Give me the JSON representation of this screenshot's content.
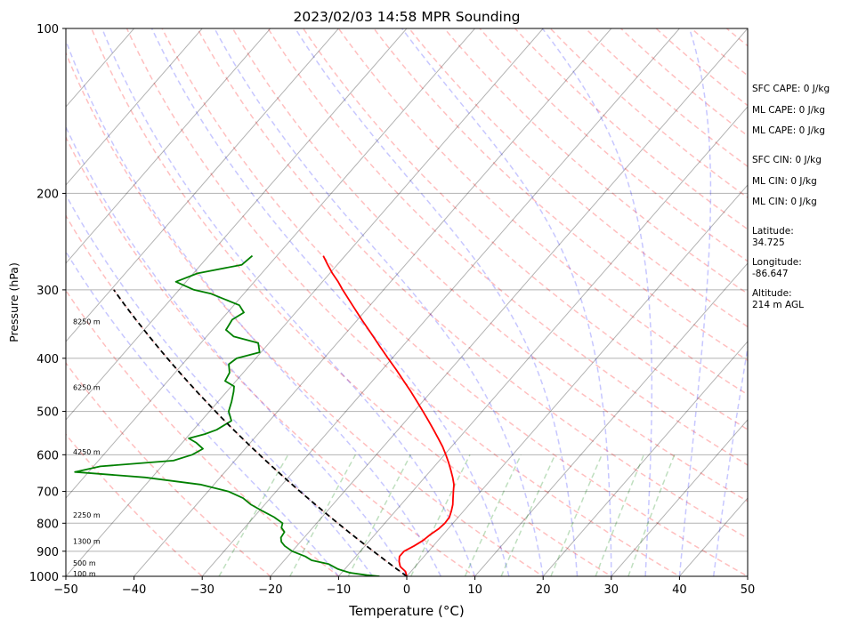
{
  "chart_data": {
    "type": "line",
    "title": "2023/02/03 14:58 MPR Sounding",
    "xlabel": "Temperature (°C)",
    "ylabel": "Pressure (hPa)",
    "xlim": [
      -50,
      50
    ],
    "ylim": [
      1000,
      100
    ],
    "y_scale": "log",
    "x_ticks": [
      "−50",
      "−40",
      "−30",
      "−20",
      "−10",
      "0",
      "10",
      "20",
      "30",
      "40",
      "50"
    ],
    "y_ticks": [
      1000,
      900,
      800,
      700,
      600,
      500,
      400,
      300,
      200,
      100
    ],
    "grid": true,
    "series": [
      {
        "role": "temperature",
        "color": "#ff0000",
        "pressure": [
          1000,
          980,
          960,
          940,
          920,
          900,
          880,
          860,
          840,
          820,
          800,
          780,
          760,
          740,
          720,
          700,
          680,
          660,
          640,
          620,
          600,
          580,
          560,
          540,
          520,
          500,
          480,
          460,
          440,
          420,
          400,
          380,
          360,
          340,
          320,
          300,
          290,
          280,
          270,
          260
        ],
        "temp": [
          0.0,
          -0.8,
          -2.2,
          -3.0,
          -3.6,
          -3.6,
          -2.8,
          -2.2,
          -1.9,
          -1.4,
          -1.2,
          -1.3,
          -1.8,
          -2.4,
          -3.2,
          -4.0,
          -4.8,
          -5.9,
          -7.1,
          -8.4,
          -9.8,
          -11.3,
          -13.0,
          -14.8,
          -16.7,
          -18.7,
          -20.8,
          -23.0,
          -25.4,
          -27.9,
          -30.6,
          -33.4,
          -36.3,
          -39.4,
          -42.6,
          -46.0,
          -47.7,
          -49.6,
          -51.4,
          -53.2
        ]
      },
      {
        "role": "dewpoint",
        "color": "#008000",
        "pressure": [
          1000,
          995,
          985,
          970,
          950,
          935,
          920,
          900,
          880,
          865,
          850,
          830,
          815,
          800,
          780,
          760,
          740,
          720,
          700,
          680,
          660,
          645,
          630,
          615,
          600,
          585,
          570,
          560,
          550,
          540,
          520,
          500,
          480,
          460,
          450,
          440,
          425,
          410,
          400,
          390,
          375,
          365,
          355,
          340,
          330,
          320,
          305,
          300,
          290,
          280,
          270,
          260
        ],
        "dewp": [
          -4.0,
          -6.0,
          -8.8,
          -11.0,
          -13.0,
          -16.0,
          -17.4,
          -20.0,
          -21.8,
          -22.8,
          -23.4,
          -23.6,
          -24.6,
          -25.0,
          -27.0,
          -29.5,
          -32.0,
          -34.0,
          -37.0,
          -42.0,
          -51.0,
          -62.0,
          -59.0,
          -49.0,
          -47.0,
          -46.2,
          -48.0,
          -49.6,
          -47.8,
          -46.6,
          -45.6,
          -47.2,
          -48.0,
          -49.0,
          -49.6,
          -51.6,
          -52.0,
          -53.2,
          -52.8,
          -50.2,
          -51.6,
          -56.0,
          -58.0,
          -58.4,
          -57.6,
          -59.2,
          -64.8,
          -67.8,
          -71.5,
          -69.4,
          -64.0,
          -63.6
        ]
      },
      {
        "role": "parcel-dry-adiabat",
        "color": "#000000",
        "style": "dashed",
        "pressure": [
          1000,
          300
        ],
        "temp": [
          0.0,
          -91.1
        ]
      }
    ],
    "height_labels": [
      {
        "text": "100 m",
        "pressure": 989
      },
      {
        "text": "500 m",
        "pressure": 945
      },
      {
        "text": "1300 m",
        "pressure": 863
      },
      {
        "text": "2250 m",
        "pressure": 772
      },
      {
        "text": "4250 m",
        "pressure": 593
      },
      {
        "text": "6250 m",
        "pressure": 452
      },
      {
        "text": "8250 m",
        "pressure": 343
      }
    ],
    "annotations": [
      "SFC CAPE: 0 J/kg",
      "ML CAPE: 0 J/kg",
      "ML CAPE: 0 J/kg",
      "SFC CIN: 0 J/kg",
      "ML CIN: 0 J/kg",
      "ML CIN: 0 J/kg",
      "Latitude:\n34.725",
      "Longitude:\n-86.647",
      "Altitude:\n214 m AGL"
    ]
  }
}
